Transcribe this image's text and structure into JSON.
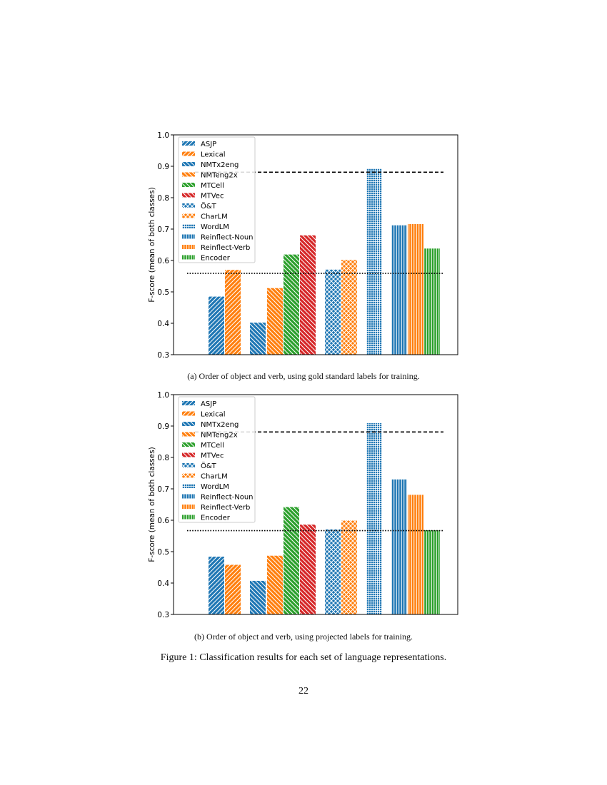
{
  "colors": {
    "blue": "#1f77b4",
    "orange": "#ff7f0e",
    "green": "#2ca02c",
    "red": "#d62728"
  },
  "legend": [
    {
      "name": "ASJP",
      "color": "blue",
      "hatch": "fwd"
    },
    {
      "name": "Lexical",
      "color": "orange",
      "hatch": "fwd"
    },
    {
      "name": "NMTx2eng",
      "color": "blue",
      "hatch": "back"
    },
    {
      "name": "NMTeng2x",
      "color": "orange",
      "hatch": "back"
    },
    {
      "name": "MTCell",
      "color": "green",
      "hatch": "back"
    },
    {
      "name": "MTVec",
      "color": "red",
      "hatch": "back"
    },
    {
      "name": "Ö&T",
      "color": "blue",
      "hatch": "cross"
    },
    {
      "name": "CharLM",
      "color": "orange",
      "hatch": "cross"
    },
    {
      "name": "WordLM",
      "color": "blue",
      "hatch": "grid"
    },
    {
      "name": "Reinflect-Noun",
      "color": "blue",
      "hatch": "vert"
    },
    {
      "name": "Reinflect-Verb",
      "color": "orange",
      "hatch": "vert"
    },
    {
      "name": "Encoder",
      "color": "green",
      "hatch": "vert"
    }
  ],
  "chart_data": [
    {
      "type": "bar",
      "ylabel": "F-score (mean of both classes)",
      "ylim": [
        0.3,
        1.0
      ],
      "yticks": [
        "0.3",
        "0.4",
        "0.5",
        "0.6",
        "0.7",
        "0.8",
        "0.9",
        "1.0"
      ],
      "legend_position": "upper-left",
      "series": [
        {
          "name": "ASJP",
          "value": 0.485
        },
        {
          "name": "Lexical",
          "value": 0.57
        },
        {
          "name": "NMTx2eng",
          "value": 0.402
        },
        {
          "name": "NMTeng2x",
          "value": 0.512
        },
        {
          "name": "MTCell",
          "value": 0.619
        },
        {
          "name": "MTVec",
          "value": 0.68
        },
        {
          "name": "Ö&T",
          "value": 0.571
        },
        {
          "name": "CharLM",
          "value": 0.602
        },
        {
          "name": "WordLM",
          "value": 0.893
        },
        {
          "name": "Reinflect-Noun",
          "value": 0.712
        },
        {
          "name": "Reinflect-Verb",
          "value": 0.716
        },
        {
          "name": "Encoder",
          "value": 0.638
        }
      ],
      "dashed_line": 0.881,
      "dotted_line": 0.559,
      "caption": "(a) Order of object and verb, using gold standard labels for training."
    },
    {
      "type": "bar",
      "ylabel": "F-score (mean of both classes)",
      "ylim": [
        0.3,
        1.0
      ],
      "yticks": [
        "0.3",
        "0.4",
        "0.5",
        "0.6",
        "0.7",
        "0.8",
        "0.9",
        "1.0"
      ],
      "legend_position": "upper-left",
      "series": [
        {
          "name": "ASJP",
          "value": 0.484
        },
        {
          "name": "Lexical",
          "value": 0.458
        },
        {
          "name": "NMTx2eng",
          "value": 0.407
        },
        {
          "name": "NMTeng2x",
          "value": 0.487
        },
        {
          "name": "MTCell",
          "value": 0.642
        },
        {
          "name": "MTVec",
          "value": 0.586
        },
        {
          "name": "Ö&T",
          "value": 0.571
        },
        {
          "name": "CharLM",
          "value": 0.599
        },
        {
          "name": "WordLM",
          "value": 0.909
        },
        {
          "name": "Reinflect-Noun",
          "value": 0.73
        },
        {
          "name": "Reinflect-Verb",
          "value": 0.681
        },
        {
          "name": "Encoder",
          "value": 0.568
        }
      ],
      "dashed_line": 0.881,
      "dotted_line": 0.567,
      "caption": "(b) Order of object and verb, using projected labels for training."
    }
  ],
  "figure_caption": "Figure 1: Classification results for each set of language representations.",
  "page_number": "22"
}
